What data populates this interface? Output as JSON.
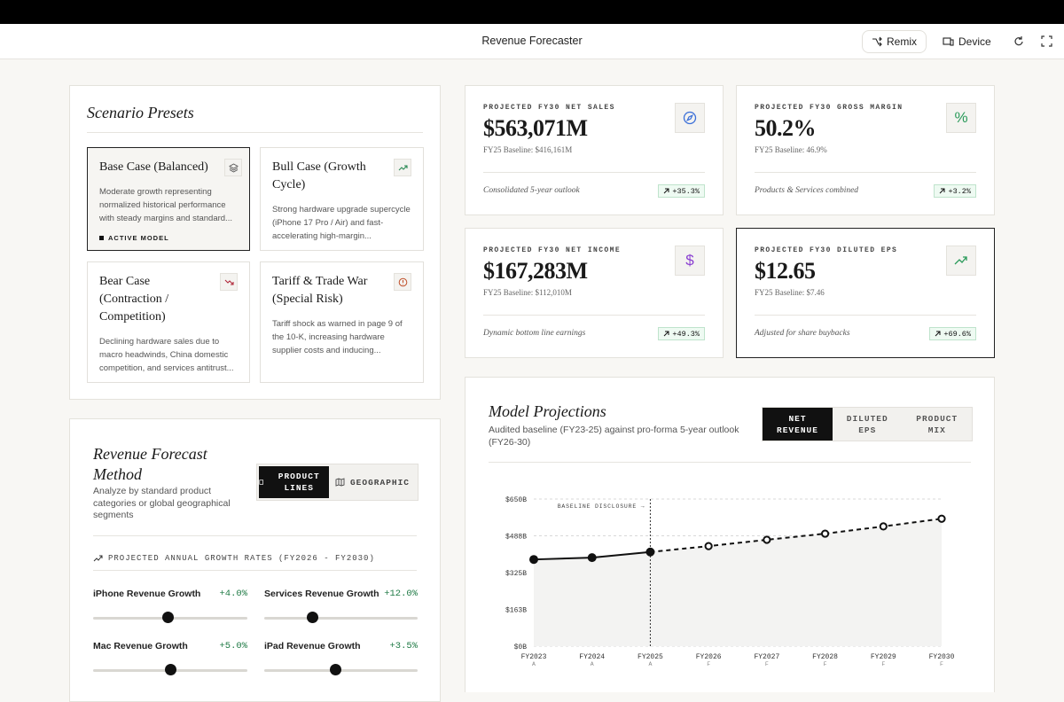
{
  "header": {
    "title": "Revenue Forecaster",
    "buttons": [
      "Remix",
      "Device"
    ]
  },
  "scenario_presets": {
    "title": "Scenario Presets",
    "cards": [
      {
        "title": "Base Case (Balanced)",
        "description": "Moderate growth representing normalized historical performance with steady margins and standard...",
        "badge": "ACTIVE MODEL"
      },
      {
        "title": "Bull Case (Growth Cycle)",
        "description": "Strong hardware upgrade supercycle (iPhone 17 Pro / Air) and fast-accelerating high-margin..."
      },
      {
        "title": "Bear Case (Contraction / Competition)",
        "description": "Declining hardware sales due to macro headwinds, China domestic competition, and services antitrust..."
      },
      {
        "title": "Tariff & Trade War (Special Risk)",
        "description": "Tariff shock as warned in page 9 of the 10-K, increasing hardware supplier costs and inducing..."
      }
    ]
  },
  "kpis": [
    {
      "label": "PROJECTED FY30 NET SALES",
      "value": "$563,071M",
      "baseline": "FY25 Baseline: $416,161M",
      "note": "Consolidated 5-year outlook",
      "change": "+35.3%"
    },
    {
      "label": "PROJECTED FY30 GROSS MARGIN",
      "value": "50.2%",
      "baseline": "FY25 Baseline: 46.9%",
      "note": "Products & Services combined",
      "change": "+3.2%",
      "icon": "%"
    },
    {
      "label": "PROJECTED FY30 NET INCOME",
      "value": "$167,283M",
      "baseline": "FY25 Baseline: $112,010M",
      "note": "Dynamic bottom line earnings",
      "change": "+49.3%",
      "icon": "$"
    },
    {
      "label": "PROJECTED FY30 DILUTED EPS",
      "value": "$12.65",
      "baseline": "FY25 Baseline: $7.46",
      "note": "Adjusted for share buybacks",
      "change": "+69.6%"
    }
  ],
  "forecast_method": {
    "title": "Revenue Forecast Method",
    "description": "Analyze by standard product categories or global geographical segments",
    "toggles": [
      "PRODUCT LINES",
      "GEOGRAPHIC"
    ],
    "section_label": "PROJECTED ANNUAL GROWTH RATES (FY2026 - FY2030)",
    "sliders": [
      {
        "label": "iPhone Revenue Growth",
        "value": 4.0,
        "value_label": "+4.0%"
      },
      {
        "label": "Services Revenue Growth",
        "value": 12.0,
        "value_label": "+12.0%"
      },
      {
        "label": "Mac Revenue Growth",
        "value": 5.0,
        "value_label": "+5.0%"
      },
      {
        "label": "iPad Revenue Growth",
        "value": 3.5,
        "value_label": "+3.5%"
      }
    ]
  },
  "chart_data": {
    "type": "line",
    "title": "Model Projections",
    "subtitle": "Audited baseline (FY23-25) against pro-forma 5-year outlook (FY26-30)",
    "tabs": [
      "NET REVENUE",
      "DILUTED EPS",
      "PRODUCT MIX"
    ],
    "categories": [
      "FY2023",
      "FY2024",
      "FY2025",
      "FY2026",
      "FY2027",
      "FY2028",
      "FY2029",
      "FY2030"
    ],
    "category_notes": [
      "A",
      "A",
      "A",
      "F",
      "F",
      "F",
      "F",
      "F"
    ],
    "values": [
      383,
      391,
      416,
      442,
      470,
      497,
      529,
      563
    ],
    "ylim": [
      0,
      650
    ],
    "yticks": [
      {
        "value": 0,
        "label": "$0B"
      },
      {
        "value": 162.5,
        "label": "$163B"
      },
      {
        "value": 325,
        "label": "$325B"
      },
      {
        "value": 487.5,
        "label": "$488B"
      },
      {
        "value": 650,
        "label": "$650B"
      }
    ],
    "annotation": "BASELINE DISCLOSURE →",
    "grid": true,
    "color": "#111111"
  }
}
